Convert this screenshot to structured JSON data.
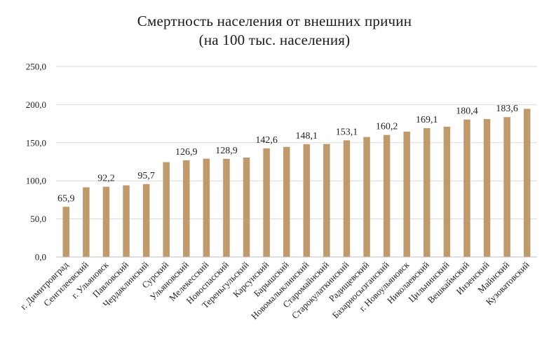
{
  "colors": {
    "bar": "#C19A6B",
    "grid": "#D9D9D9",
    "axis": "#BFBFBF",
    "text": "#222222"
  },
  "chart_data": {
    "type": "bar",
    "title": [
      "Смертность населения от внешних причин",
      "(на 100 тыс. населения)"
    ],
    "xlabel": "",
    "ylabel": "",
    "ylim": [
      0,
      250
    ],
    "yticks": [
      {
        "value": 0,
        "label": "0,0"
      },
      {
        "value": 50,
        "label": "50,0"
      },
      {
        "value": 100,
        "label": "100,0"
      },
      {
        "value": 150,
        "label": "150,0"
      },
      {
        "value": 200,
        "label": "200,0"
      },
      {
        "value": 250,
        "label": "250,0"
      }
    ],
    "grid": true,
    "categories": [
      "г. Димитровград",
      "Сенгилеевский",
      "г. Ульяновск",
      "Павловский",
      "Чердаклинский",
      "Сурский",
      "Ульяновский",
      "Мелекесский",
      "Новоспасский",
      "Тереньгульский",
      "Карсунский",
      "Барышский",
      "Новомалыклинский",
      "Старомайнский",
      "Старокулаткинский",
      "Радищевский",
      "Базарносызганский",
      "г. Новоульяновск",
      "Николаевский",
      "Цильнинский",
      "Вешкаймский",
      "Инзенский",
      "Майнский",
      "Кузоватовский"
    ],
    "values": [
      65.9,
      91.5,
      92.2,
      94.0,
      95.7,
      124.5,
      126.9,
      129.0,
      128.9,
      130.5,
      142.6,
      144.5,
      148.1,
      148.3,
      153.1,
      157.5,
      160.2,
      164.5,
      169.1,
      171.0,
      180.4,
      181.0,
      183.6,
      194.5
    ],
    "data_labels": [
      {
        "index": 0,
        "text": "65,9"
      },
      {
        "index": 2,
        "text": "92,2"
      },
      {
        "index": 4,
        "text": "95,7"
      },
      {
        "index": 6,
        "text": "126,9"
      },
      {
        "index": 8,
        "text": "128,9"
      },
      {
        "index": 10,
        "text": "142,6"
      },
      {
        "index": 12,
        "text": "148,1"
      },
      {
        "index": 14,
        "text": "153,1"
      },
      {
        "index": 16,
        "text": "160,2"
      },
      {
        "index": 18,
        "text": "169,1"
      },
      {
        "index": 20,
        "text": "180,4"
      },
      {
        "index": 22,
        "text": "183,6"
      }
    ]
  }
}
